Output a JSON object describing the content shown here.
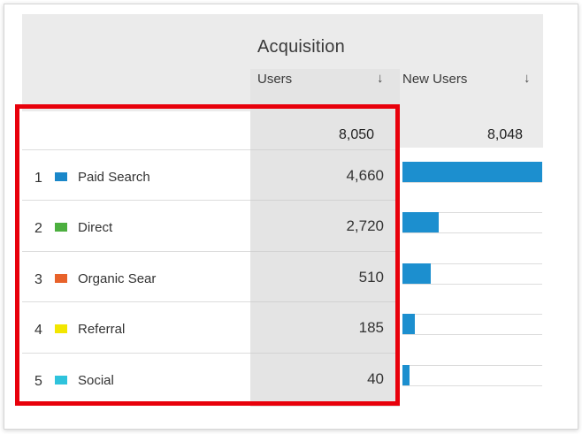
{
  "table": {
    "group_title": "Acquisition",
    "columns": [
      {
        "label": "Users",
        "sort_icon": "↓"
      },
      {
        "label": "New Users",
        "sort_icon": "↓"
      }
    ],
    "totals": {
      "users": "8,050",
      "new_users": "8,048"
    },
    "rows": [
      {
        "index": "1",
        "source": "Paid Search",
        "color": "#1a87c9",
        "users": "4,660",
        "new_users_share": 1.0
      },
      {
        "index": "2",
        "source": "Direct",
        "color": "#4caf3f",
        "users": "2,720",
        "new_users_share": 0.26
      },
      {
        "index": "3",
        "source": "Organic Sear",
        "color": "#e8622a",
        "users": "510",
        "new_users_share": 0.2
      },
      {
        "index": "4",
        "source": "Referral",
        "color": "#f2e600",
        "users": "185",
        "new_users_share": 0.09
      },
      {
        "index": "5",
        "source": "Social",
        "color": "#2fc3dc",
        "users": "40",
        "new_users_share": 0.05
      }
    ]
  },
  "highlight_color": "#e8000b"
}
